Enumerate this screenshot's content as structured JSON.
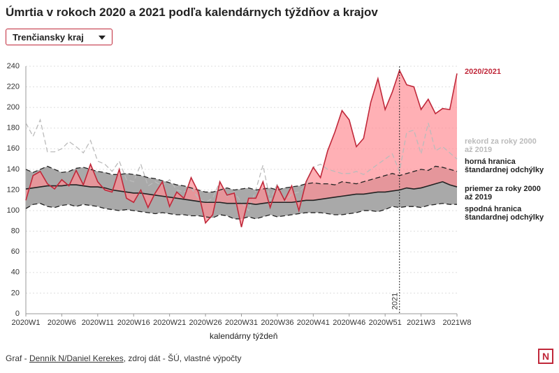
{
  "title": "Úmrtia v rokoch 2020 a 2021 podľa kalendárnych týždňov a krajov",
  "dropdown": "Trenčiansky kraj",
  "footer": {
    "prefix": "Graf - ",
    "link": "Denník N/Daniel Kerekes",
    "suffix": ", zdroj dát - ŠÚ, vlastné výpočty"
  },
  "logo": "N",
  "chart_data": {
    "type": "line",
    "xlabel": "kalendárny týždeň",
    "categories": [
      "2020W1",
      null,
      null,
      null,
      null,
      "2020W6",
      null,
      null,
      null,
      null,
      "2020W11",
      null,
      null,
      null,
      null,
      "2020W16",
      null,
      null,
      null,
      null,
      "2020W21",
      null,
      null,
      null,
      null,
      "2020W26",
      null,
      null,
      null,
      null,
      "2020W31",
      null,
      null,
      null,
      null,
      "2020W36",
      null,
      null,
      null,
      null,
      "2020W41",
      null,
      null,
      null,
      null,
      "2020W46",
      null,
      null,
      null,
      null,
      "2020W51",
      null,
      null,
      null,
      null,
      "2021W3",
      null,
      null,
      null,
      null,
      "2021W8"
    ],
    "ylim": [
      0,
      240
    ],
    "yticks": [
      0,
      20,
      40,
      60,
      80,
      100,
      120,
      140,
      160,
      180,
      200,
      220,
      240
    ],
    "grid": true,
    "annotation": {
      "text": "2021",
      "x_index": 52
    },
    "band_color": "#a9a9a9",
    "fill_color": "#ff8f96",
    "series": [
      {
        "name": "2020/2021",
        "color": "#c0283a",
        "dashed": false,
        "values": [
          110,
          134,
          138,
          126,
          121,
          130,
          124,
          139,
          125,
          145,
          128,
          120,
          118,
          140,
          112,
          108,
          120,
          103,
          117,
          128,
          104,
          118,
          112,
          132,
          118,
          88,
          96,
          128,
          115,
          117,
          84,
          112,
          112,
          128,
          103,
          124,
          110,
          124,
          100,
          128,
          142,
          132,
          158,
          176,
          197,
          188,
          162,
          170,
          205,
          228,
          198,
          215,
          236,
          222,
          220,
          198,
          208,
          194,
          199,
          198,
          233
        ]
      },
      {
        "name": "rekord za roky 2000 až 2019",
        "color": "#bbbbbb",
        "dashed": true,
        "values": [
          185,
          172,
          188,
          157,
          157,
          160,
          167,
          162,
          156,
          168,
          148,
          145,
          138,
          148,
          130,
          128,
          145,
          124,
          128,
          124,
          130,
          120,
          118,
          122,
          112,
          108,
          112,
          128,
          114,
          118,
          108,
          100,
          120,
          144,
          110,
          126,
          108,
          116,
          118,
          126,
          142,
          145,
          140,
          138,
          136,
          136,
          138,
          135,
          140,
          145,
          150,
          155,
          138,
          176,
          178,
          155,
          185,
          158,
          162,
          156,
          150
        ]
      },
      {
        "name": "horná hranica štandardnej odchýlky",
        "color": "#222222",
        "dashed": true,
        "values": [
          140,
          137,
          140,
          143,
          140,
          137,
          138,
          141,
          142,
          140,
          138,
          137,
          135,
          135,
          136,
          135,
          134,
          132,
          131,
          129,
          127,
          125,
          124,
          122,
          120,
          118,
          118,
          120,
          122,
          120,
          121,
          122,
          120,
          121,
          122,
          120,
          122,
          123,
          124,
          126,
          127,
          126,
          126,
          125,
          128,
          127,
          126,
          128,
          130,
          132,
          134,
          136,
          134,
          136,
          138,
          140,
          139,
          143,
          142,
          140,
          138
        ]
      },
      {
        "name": "priemer za roky 2000 až 2019",
        "color": "#222222",
        "dashed": false,
        "values": [
          121,
          122,
          123,
          124,
          124,
          124,
          125,
          125,
          124,
          123,
          123,
          122,
          120,
          119,
          118,
          117,
          117,
          116,
          115,
          114,
          113,
          112,
          111,
          110,
          109,
          108,
          108,
          108,
          107,
          107,
          107,
          107,
          106,
          107,
          108,
          108,
          108,
          108,
          109,
          110,
          110,
          111,
          112,
          113,
          114,
          115,
          116,
          116,
          117,
          118,
          118,
          119,
          120,
          122,
          121,
          122,
          124,
          126,
          128,
          125,
          123
        ]
      },
      {
        "name": "spodná hranica štandardnej odchýlky",
        "color": "#222222",
        "dashed": true,
        "values": [
          102,
          106,
          107,
          104,
          103,
          105,
          106,
          104,
          106,
          105,
          104,
          102,
          101,
          100,
          101,
          100,
          99,
          98,
          97,
          98,
          97,
          96,
          96,
          95,
          95,
          94,
          93,
          96,
          95,
          92,
          92,
          94,
          92,
          94,
          96,
          94,
          95,
          96,
          97,
          98,
          98,
          98,
          97,
          96,
          96,
          97,
          98,
          100,
          100,
          99,
          101,
          104,
          103,
          104,
          104,
          103,
          105,
          106,
          107,
          106,
          106
        ]
      }
    ]
  }
}
